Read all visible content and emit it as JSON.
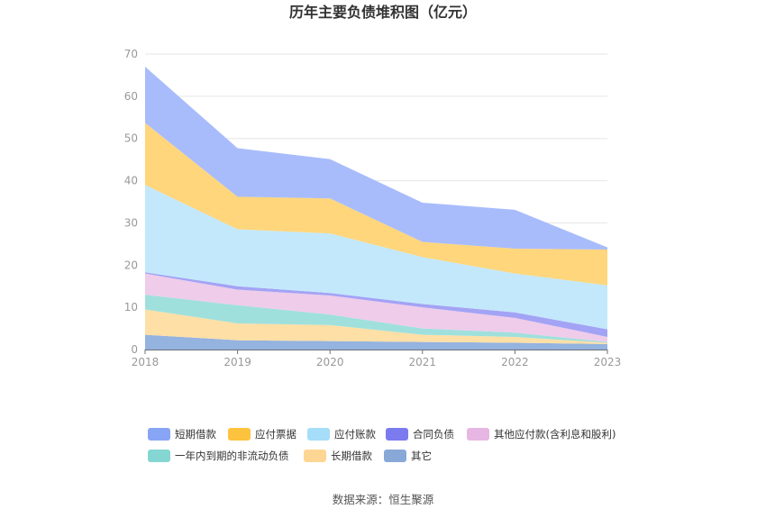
{
  "source": "数据来源：恒生聚源",
  "chart_data": {
    "type": "area",
    "stacked": true,
    "title": "历年主要负债堆积图（亿元）",
    "x": [
      "2018",
      "2019",
      "2020",
      "2021",
      "2022",
      "2023"
    ],
    "ylim": [
      0,
      70
    ],
    "yticks": [
      0,
      10,
      20,
      30,
      40,
      50,
      60,
      70
    ],
    "grid": true,
    "legend_position": "bottom",
    "series": [
      {
        "name": "其它",
        "color": "#94b3df",
        "values": [
          3.5,
          2.2,
          2.0,
          1.8,
          1.6,
          1.3
        ]
      },
      {
        "name": "长期借款",
        "color": "#fedfa6",
        "values": [
          6.0,
          4.0,
          3.8,
          1.7,
          1.4,
          0.3
        ]
      },
      {
        "name": "一年内到期的非流动负债",
        "color": "#9fe0dd",
        "values": [
          3.5,
          4.3,
          2.5,
          1.5,
          1.0,
          0.2
        ]
      },
      {
        "name": "其他应付款(含利息和股利)",
        "color": "#eeccea",
        "values": [
          5.0,
          3.7,
          4.5,
          5.0,
          3.5,
          1.2
        ]
      },
      {
        "name": "合同负债",
        "color": "#a3a3f5",
        "values": [
          0.3,
          0.8,
          0.6,
          0.8,
          1.3,
          1.8
        ]
      },
      {
        "name": "应付账款",
        "color": "#c3e8fb",
        "values": [
          20.7,
          13.5,
          14.1,
          11.1,
          9.2,
          10.4
        ]
      },
      {
        "name": "应付票据",
        "color": "#ffd67c",
        "values": [
          14.7,
          7.7,
          8.3,
          3.6,
          5.9,
          8.5
        ]
      },
      {
        "name": "短期借款",
        "color": "#a8bcfc",
        "values": [
          13.3,
          11.5,
          9.3,
          9.3,
          9.2,
          0.5
        ]
      }
    ],
    "legend_order": [
      "短期借款",
      "应付票据",
      "应付账款",
      "合同负债",
      "其他应付款(含利息和股利)",
      "一年内到期的非流动负债",
      "长期借款",
      "其它"
    ],
    "legend_colors": {
      "短期借款": "#88a4f5",
      "应付票据": "#fdc23e",
      "应付账款": "#a6ddf9",
      "合同负债": "#7b7bef",
      "其他应付款(含利息和股利)": "#e8b6e2",
      "一年内到期的非流动负债": "#84d6d2",
      "长期借款": "#fed693",
      "其它": "#88a8d8"
    }
  }
}
